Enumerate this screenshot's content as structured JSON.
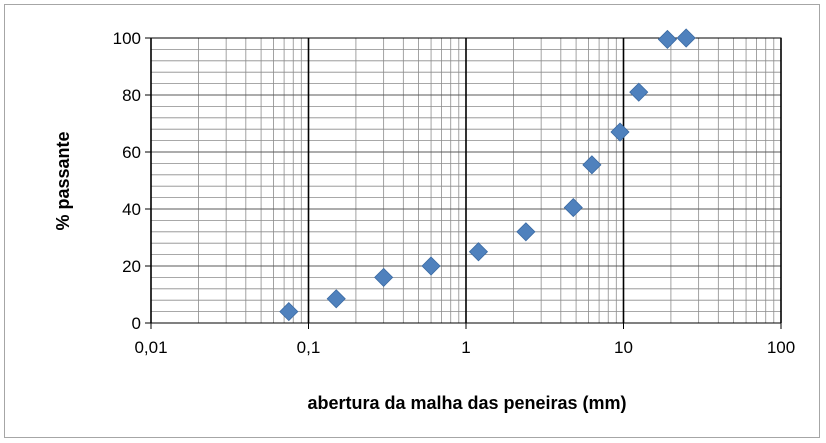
{
  "chart_data": {
    "type": "scatter",
    "title": "",
    "xlabel": "abertura da malha das peneiras (mm)",
    "ylabel": "% passante",
    "x_scale": "log",
    "xlim": [
      0.01,
      100
    ],
    "ylim": [
      0,
      100
    ],
    "x_ticks": [
      0.01,
      0.1,
      1,
      10,
      100
    ],
    "x_tick_labels": [
      "0,01",
      "0,1",
      "1",
      "10",
      "100"
    ],
    "y_ticks": [
      0,
      20,
      40,
      60,
      80,
      100
    ],
    "y_tick_labels": [
      "0",
      "20",
      "40",
      "60",
      "80",
      "100"
    ],
    "grid": "major and minor",
    "legend": "none",
    "marker": "diamond",
    "series": [
      {
        "x": [
          0.075,
          0.15,
          0.3,
          0.6,
          1.2,
          2.4,
          4.8,
          6.3,
          9.5,
          12.5,
          19,
          25
        ],
        "y": [
          4,
          8.5,
          16,
          20,
          25,
          32,
          40.5,
          55.5,
          67,
          81,
          99.5,
          100
        ],
        "color": "#4f81bd"
      }
    ]
  }
}
